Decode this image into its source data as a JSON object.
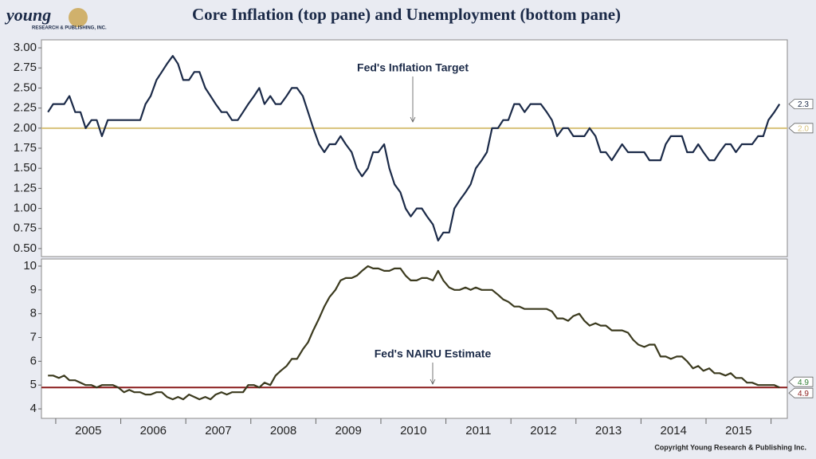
{
  "title": "Core Inflation (top pane) and Unemployment (bottom pane)",
  "logo": {
    "name": "young",
    "sub": "RESEARCH & PUBLISHING, INC."
  },
  "copyright": "Copyright Young Research & Publishing Inc.",
  "chart_data": [
    {
      "type": "line",
      "color": "#1b2a48",
      "xlim": [
        2004.78,
        2016.25
      ],
      "ylim": [
        0.4,
        3.1
      ],
      "yticks": [
        {
          "value": 0.5,
          "label": "0.50"
        },
        {
          "value": 0.75,
          "label": "0.75"
        },
        {
          "value": 1,
          "label": "1.00"
        },
        {
          "value": 1.25,
          "label": "1.25"
        },
        {
          "value": 1.5,
          "label": "1.50"
        },
        {
          "value": 1.75,
          "label": "1.75"
        },
        {
          "value": 2,
          "label": "2.00"
        },
        {
          "value": 2.25,
          "label": "2.25"
        },
        {
          "value": 2.5,
          "label": "2.50"
        },
        {
          "value": 2.75,
          "label": "2.75"
        },
        {
          "value": 3,
          "label": "3.00"
        }
      ],
      "reference": {
        "value": 2,
        "value_label": "2.0",
        "color": "#d8c27c",
        "annotation": "Fed's Inflation Target"
      },
      "x": [
        2004.88,
        2004.96,
        2005.05,
        2005.13,
        2005.21,
        2005.3,
        2005.38,
        2005.46,
        2005.55,
        2005.63,
        2005.71,
        2005.8,
        2005.88,
        2005.96,
        2006.05,
        2006.13,
        2006.21,
        2006.3,
        2006.38,
        2006.46,
        2006.55,
        2006.63,
        2006.71,
        2006.8,
        2006.88,
        2006.96,
        2007.05,
        2007.13,
        2007.21,
        2007.3,
        2007.38,
        2007.46,
        2007.55,
        2007.63,
        2007.71,
        2007.8,
        2007.88,
        2007.96,
        2008.05,
        2008.13,
        2008.21,
        2008.3,
        2008.38,
        2008.46,
        2008.55,
        2008.63,
        2008.71,
        2008.8,
        2008.88,
        2008.96,
        2009.05,
        2009.13,
        2009.21,
        2009.3,
        2009.38,
        2009.46,
        2009.55,
        2009.63,
        2009.71,
        2009.8,
        2009.88,
        2009.96,
        2010.05,
        2010.13,
        2010.21,
        2010.3,
        2010.38,
        2010.46,
        2010.55,
        2010.63,
        2010.71,
        2010.8,
        2010.88,
        2010.96,
        2011.05,
        2011.13,
        2011.21,
        2011.3,
        2011.38,
        2011.46,
        2011.55,
        2011.63,
        2011.71,
        2011.8,
        2011.88,
        2011.96,
        2012.05,
        2012.13,
        2012.21,
        2012.3,
        2012.38,
        2012.46,
        2012.55,
        2012.63,
        2012.71,
        2012.8,
        2012.88,
        2012.96,
        2013.05,
        2013.13,
        2013.21,
        2013.3,
        2013.38,
        2013.46,
        2013.55,
        2013.63,
        2013.71,
        2013.8,
        2013.88,
        2013.96,
        2014.05,
        2014.13,
        2014.21,
        2014.3,
        2014.38,
        2014.46,
        2014.55,
        2014.63,
        2014.71,
        2014.8,
        2014.88,
        2014.96,
        2015.05,
        2015.13,
        2015.21,
        2015.3,
        2015.38,
        2015.46,
        2015.55,
        2015.63,
        2015.71,
        2015.8,
        2015.88,
        2015.96,
        2016.05,
        2016.13
      ],
      "values": [
        2.2,
        2.3,
        2.3,
        2.3,
        2.4,
        2.2,
        2.2,
        2.0,
        2.1,
        2.1,
        1.9,
        2.1,
        2.1,
        2.1,
        2.1,
        2.1,
        2.1,
        2.1,
        2.3,
        2.4,
        2.6,
        2.7,
        2.8,
        2.9,
        2.8,
        2.6,
        2.6,
        2.7,
        2.7,
        2.5,
        2.4,
        2.3,
        2.2,
        2.2,
        2.1,
        2.1,
        2.2,
        2.3,
        2.4,
        2.5,
        2.3,
        2.4,
        2.3,
        2.3,
        2.4,
        2.5,
        2.5,
        2.4,
        2.2,
        2.0,
        1.8,
        1.7,
        1.8,
        1.8,
        1.9,
        1.8,
        1.7,
        1.5,
        1.4,
        1.5,
        1.7,
        1.7,
        1.8,
        1.5,
        1.3,
        1.2,
        1.0,
        0.9,
        1.0,
        1.0,
        0.9,
        0.8,
        0.6,
        0.7,
        0.7,
        1.0,
        1.1,
        1.2,
        1.3,
        1.5,
        1.6,
        1.7,
        2.0,
        2.0,
        2.1,
        2.1,
        2.3,
        2.3,
        2.2,
        2.3,
        2.3,
        2.3,
        2.2,
        2.1,
        1.9,
        2.0,
        2.0,
        1.9,
        1.9,
        1.9,
        2.0,
        1.9,
        1.7,
        1.7,
        1.6,
        1.7,
        1.8,
        1.7,
        1.7,
        1.7,
        1.7,
        1.6,
        1.6,
        1.6,
        1.8,
        1.9,
        1.9,
        1.9,
        1.7,
        1.7,
        1.8,
        1.7,
        1.6,
        1.6,
        1.7,
        1.8,
        1.8,
        1.7,
        1.8,
        1.8,
        1.8,
        1.9,
        1.9,
        2.1,
        2.2,
        2.3
      ]
    },
    {
      "type": "line",
      "color": "#3b3a1e",
      "xlim": [
        2004.78,
        2016.25
      ],
      "ylim": [
        3.6,
        10.3
      ],
      "yticks": [
        4,
        5,
        6,
        7,
        8,
        9,
        10
      ],
      "xticks": [
        2005,
        2006,
        2007,
        2008,
        2009,
        2010,
        2011,
        2012,
        2013,
        2014,
        2015,
        2016
      ],
      "x_labels": [
        "2005",
        "2006",
        "2007",
        "2008",
        "2009",
        "2010",
        "2011",
        "2012",
        "2013",
        "2014",
        "2015"
      ],
      "reference": {
        "value": 4.9,
        "color": "#8a1c1c",
        "annotation": "Fed's NAIRU Estimate"
      },
      "x": [
        2004.88,
        2004.96,
        2005.05,
        2005.13,
        2005.21,
        2005.3,
        2005.38,
        2005.46,
        2005.55,
        2005.63,
        2005.71,
        2005.8,
        2005.88,
        2005.96,
        2006.05,
        2006.13,
        2006.21,
        2006.3,
        2006.38,
        2006.46,
        2006.55,
        2006.63,
        2006.71,
        2006.8,
        2006.88,
        2006.96,
        2007.05,
        2007.13,
        2007.21,
        2007.3,
        2007.38,
        2007.46,
        2007.55,
        2007.63,
        2007.71,
        2007.8,
        2007.88,
        2007.96,
        2008.05,
        2008.13,
        2008.21,
        2008.3,
        2008.38,
        2008.46,
        2008.55,
        2008.63,
        2008.71,
        2008.8,
        2008.88,
        2008.96,
        2009.05,
        2009.13,
        2009.21,
        2009.3,
        2009.38,
        2009.46,
        2009.55,
        2009.63,
        2009.71,
        2009.8,
        2009.88,
        2009.96,
        2010.05,
        2010.13,
        2010.21,
        2010.3,
        2010.38,
        2010.46,
        2010.55,
        2010.63,
        2010.71,
        2010.8,
        2010.88,
        2010.96,
        2011.05,
        2011.13,
        2011.21,
        2011.3,
        2011.38,
        2011.46,
        2011.55,
        2011.63,
        2011.71,
        2011.8,
        2011.88,
        2011.96,
        2012.05,
        2012.13,
        2012.21,
        2012.3,
        2012.38,
        2012.46,
        2012.55,
        2012.63,
        2012.71,
        2012.8,
        2012.88,
        2012.96,
        2013.05,
        2013.13,
        2013.21,
        2013.3,
        2013.38,
        2013.46,
        2013.55,
        2013.63,
        2013.71,
        2013.8,
        2013.88,
        2013.96,
        2014.05,
        2014.13,
        2014.21,
        2014.3,
        2014.38,
        2014.46,
        2014.55,
        2014.63,
        2014.71,
        2014.8,
        2014.88,
        2014.96,
        2015.05,
        2015.13,
        2015.21,
        2015.3,
        2015.38,
        2015.46,
        2015.55,
        2015.63,
        2015.71,
        2015.8,
        2015.88,
        2015.96,
        2016.05,
        2016.13
      ],
      "values": [
        5.4,
        5.4,
        5.3,
        5.4,
        5.2,
        5.2,
        5.1,
        5.0,
        5.0,
        4.9,
        5.0,
        5.0,
        5.0,
        4.9,
        4.7,
        4.8,
        4.7,
        4.7,
        4.6,
        4.6,
        4.7,
        4.7,
        4.5,
        4.4,
        4.5,
        4.4,
        4.6,
        4.5,
        4.4,
        4.5,
        4.4,
        4.6,
        4.7,
        4.6,
        4.7,
        4.7,
        4.7,
        5.0,
        5.0,
        4.9,
        5.1,
        5.0,
        5.4,
        5.6,
        5.8,
        6.1,
        6.1,
        6.5,
        6.8,
        7.3,
        7.8,
        8.3,
        8.7,
        9.0,
        9.4,
        9.5,
        9.5,
        9.6,
        9.8,
        10.0,
        9.9,
        9.9,
        9.8,
        9.8,
        9.9,
        9.9,
        9.6,
        9.4,
        9.4,
        9.5,
        9.5,
        9.4,
        9.8,
        9.4,
        9.1,
        9.0,
        9.0,
        9.1,
        9.0,
        9.1,
        9.0,
        9.0,
        9.0,
        8.8,
        8.6,
        8.5,
        8.3,
        8.3,
        8.2,
        8.2,
        8.2,
        8.2,
        8.2,
        8.1,
        7.8,
        7.8,
        7.7,
        7.9,
        8.0,
        7.7,
        7.5,
        7.6,
        7.5,
        7.5,
        7.3,
        7.3,
        7.3,
        7.2,
        6.9,
        6.7,
        6.6,
        6.7,
        6.7,
        6.2,
        6.2,
        6.1,
        6.2,
        6.2,
        6.0,
        5.7,
        5.8,
        5.6,
        5.7,
        5.5,
        5.5,
        5.4,
        5.5,
        5.3,
        5.3,
        5.1,
        5.1,
        5.0,
        5.0,
        5.0,
        5.0,
        4.9
      ]
    }
  ]
}
